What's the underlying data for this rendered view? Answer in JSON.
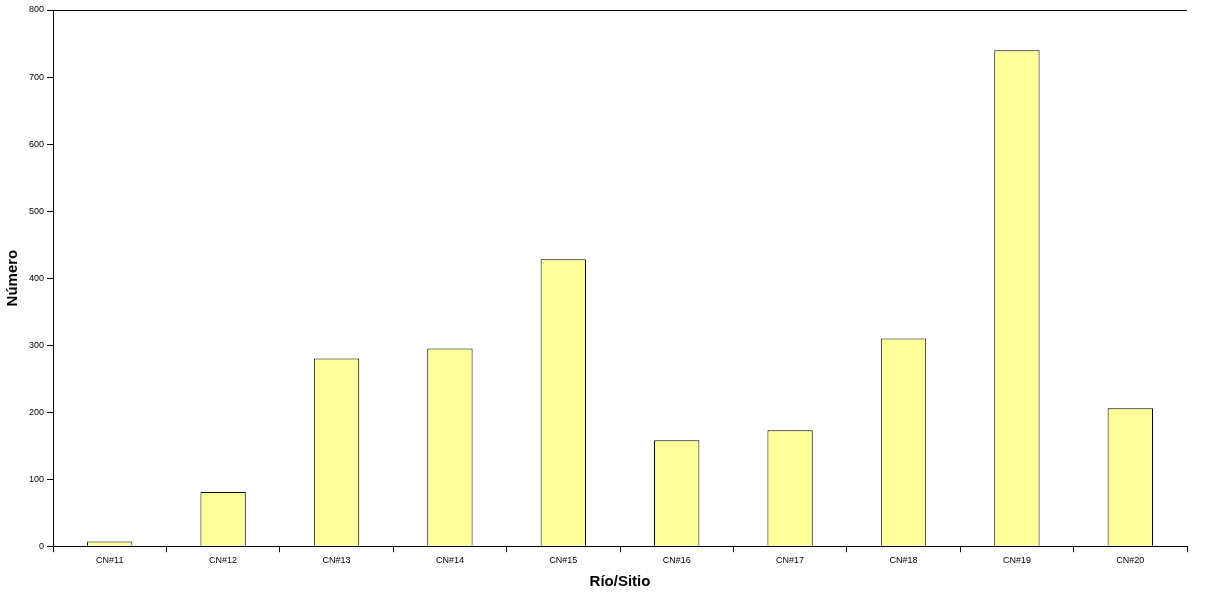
{
  "chart_data": {
    "type": "bar",
    "xlabel": "Río/Sitio",
    "ylabel": "Número",
    "categories": [
      "CN#11",
      "CN#12",
      "CN#13",
      "CN#14",
      "CN#15",
      "CN#16",
      "CN#17",
      "CN#18",
      "CN#19",
      "CN#20"
    ],
    "values": [
      7,
      81,
      280,
      295,
      428,
      158,
      173,
      310,
      740,
      206
    ],
    "color": "#ffff99",
    "ylim": [
      0,
      800
    ],
    "yticks": [
      0,
      100,
      200,
      300,
      400,
      500,
      600,
      700,
      800
    ],
    "grid": false,
    "legend": false
  }
}
